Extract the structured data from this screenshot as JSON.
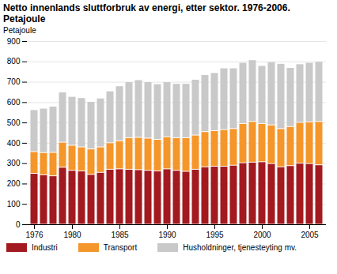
{
  "chart_data": {
    "type": "bar",
    "stacked": true,
    "title": "Netto innenlands sluttforbruk av energi, etter sektor. 1976-2006. Petajoule",
    "y_label": "Petajoule",
    "x": [
      1976,
      1977,
      1978,
      1979,
      1980,
      1981,
      1982,
      1983,
      1984,
      1985,
      1986,
      1987,
      1988,
      1989,
      1990,
      1991,
      1992,
      1993,
      1994,
      1995,
      1996,
      1997,
      1998,
      1999,
      2000,
      2001,
      2002,
      2003,
      2004,
      2005,
      2006
    ],
    "xticks": [
      1976,
      1980,
      1985,
      1990,
      1995,
      2000,
      2005
    ],
    "ylim": [
      0,
      900
    ],
    "yticks": [
      0,
      100,
      200,
      300,
      400,
      500,
      600,
      700,
      800,
      900
    ],
    "grid": true,
    "legend": "bottom",
    "series": [
      {
        "name": "Industri",
        "color": "#a21a1f",
        "values": [
          250,
          243,
          238,
          280,
          265,
          262,
          245,
          255,
          270,
          272,
          270,
          268,
          265,
          262,
          272,
          265,
          260,
          270,
          282,
          285,
          285,
          290,
          302,
          305,
          307,
          298,
          282,
          288,
          300,
          298,
          292
        ]
      },
      {
        "name": "Transport",
        "color": "#f5962a",
        "values": [
          107,
          109,
          115,
          123,
          123,
          118,
          125,
          125,
          130,
          138,
          155,
          159,
          158,
          155,
          158,
          160,
          165,
          168,
          173,
          175,
          180,
          180,
          193,
          200,
          188,
          190,
          188,
          192,
          200,
          205,
          213
        ]
      },
      {
        "name": "Husholdninger, tjenesteyting mv.",
        "color": "#c9c9c9",
        "values": [
          206,
          218,
          227,
          247,
          240,
          242,
          233,
          240,
          255,
          270,
          275,
          283,
          277,
          273,
          270,
          267,
          267,
          274,
          280,
          285,
          303,
          298,
          300,
          303,
          285,
          310,
          320,
          290,
          288,
          292,
          295
        ]
      }
    ]
  }
}
